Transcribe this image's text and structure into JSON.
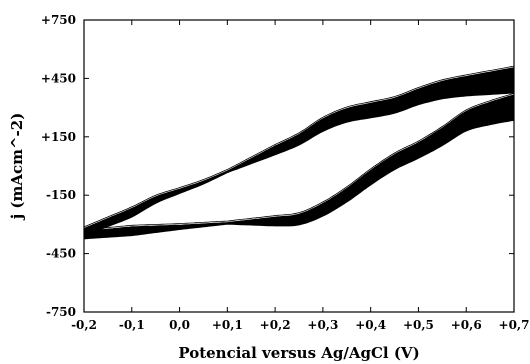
{
  "chart_data": {
    "type": "line",
    "title": "",
    "xlabel": "Potencial versus Ag/AgCl (V)",
    "ylabel": "j (mAcm^-2)",
    "xlim": [
      -0.2,
      0.7
    ],
    "ylim": [
      -750,
      750
    ],
    "x_ticks": [
      "-0,2",
      "-0,1",
      "0,0",
      "+0,1",
      "+0,2",
      "+0,3",
      "+0,4",
      "+0,5",
      "+0,6",
      "+0,7"
    ],
    "y_ticks": [
      "+750",
      "+450",
      "+150",
      "-150",
      "-450",
      "-750"
    ],
    "grid": false,
    "series": [
      {
        "x": [
          -0.2,
          -0.15,
          -0.1,
          -0.05,
          0.0,
          0.05,
          0.1,
          0.15,
          0.2,
          0.25,
          0.3,
          0.35,
          0.4,
          0.45,
          0.5,
          0.55,
          0.6,
          0.65,
          0.7
        ],
        "y": [
          -340,
          -290,
          -240,
          -175,
          -130,
          -85,
          -30,
          25,
          80,
          135,
          210,
          260,
          285,
          310,
          355,
          390,
          410,
          425,
          440
        ]
      },
      {
        "x": [
          0.7,
          0.65,
          0.6,
          0.55,
          0.5,
          0.45,
          0.4,
          0.35,
          0.3,
          0.25,
          0.2,
          0.15,
          0.1,
          0.05,
          0.0,
          -0.05,
          -0.1,
          -0.15,
          -0.2
        ],
        "y": [
          300,
          270,
          230,
          150,
          80,
          20,
          -60,
          -150,
          -225,
          -275,
          -285,
          -290,
          -295,
          -305,
          -315,
          -325,
          -335,
          -345,
          -355
        ]
      }
    ],
    "band_thickness": [
      [
        -0.2,
        38
      ],
      [
        -0.1,
        45
      ],
      [
        0.0,
        22
      ],
      [
        0.1,
        8
      ],
      [
        0.2,
        45
      ],
      [
        0.3,
        65
      ],
      [
        0.4,
        75
      ],
      [
        0.5,
        80
      ],
      [
        0.6,
        100
      ],
      [
        0.7,
        130
      ]
    ]
  }
}
